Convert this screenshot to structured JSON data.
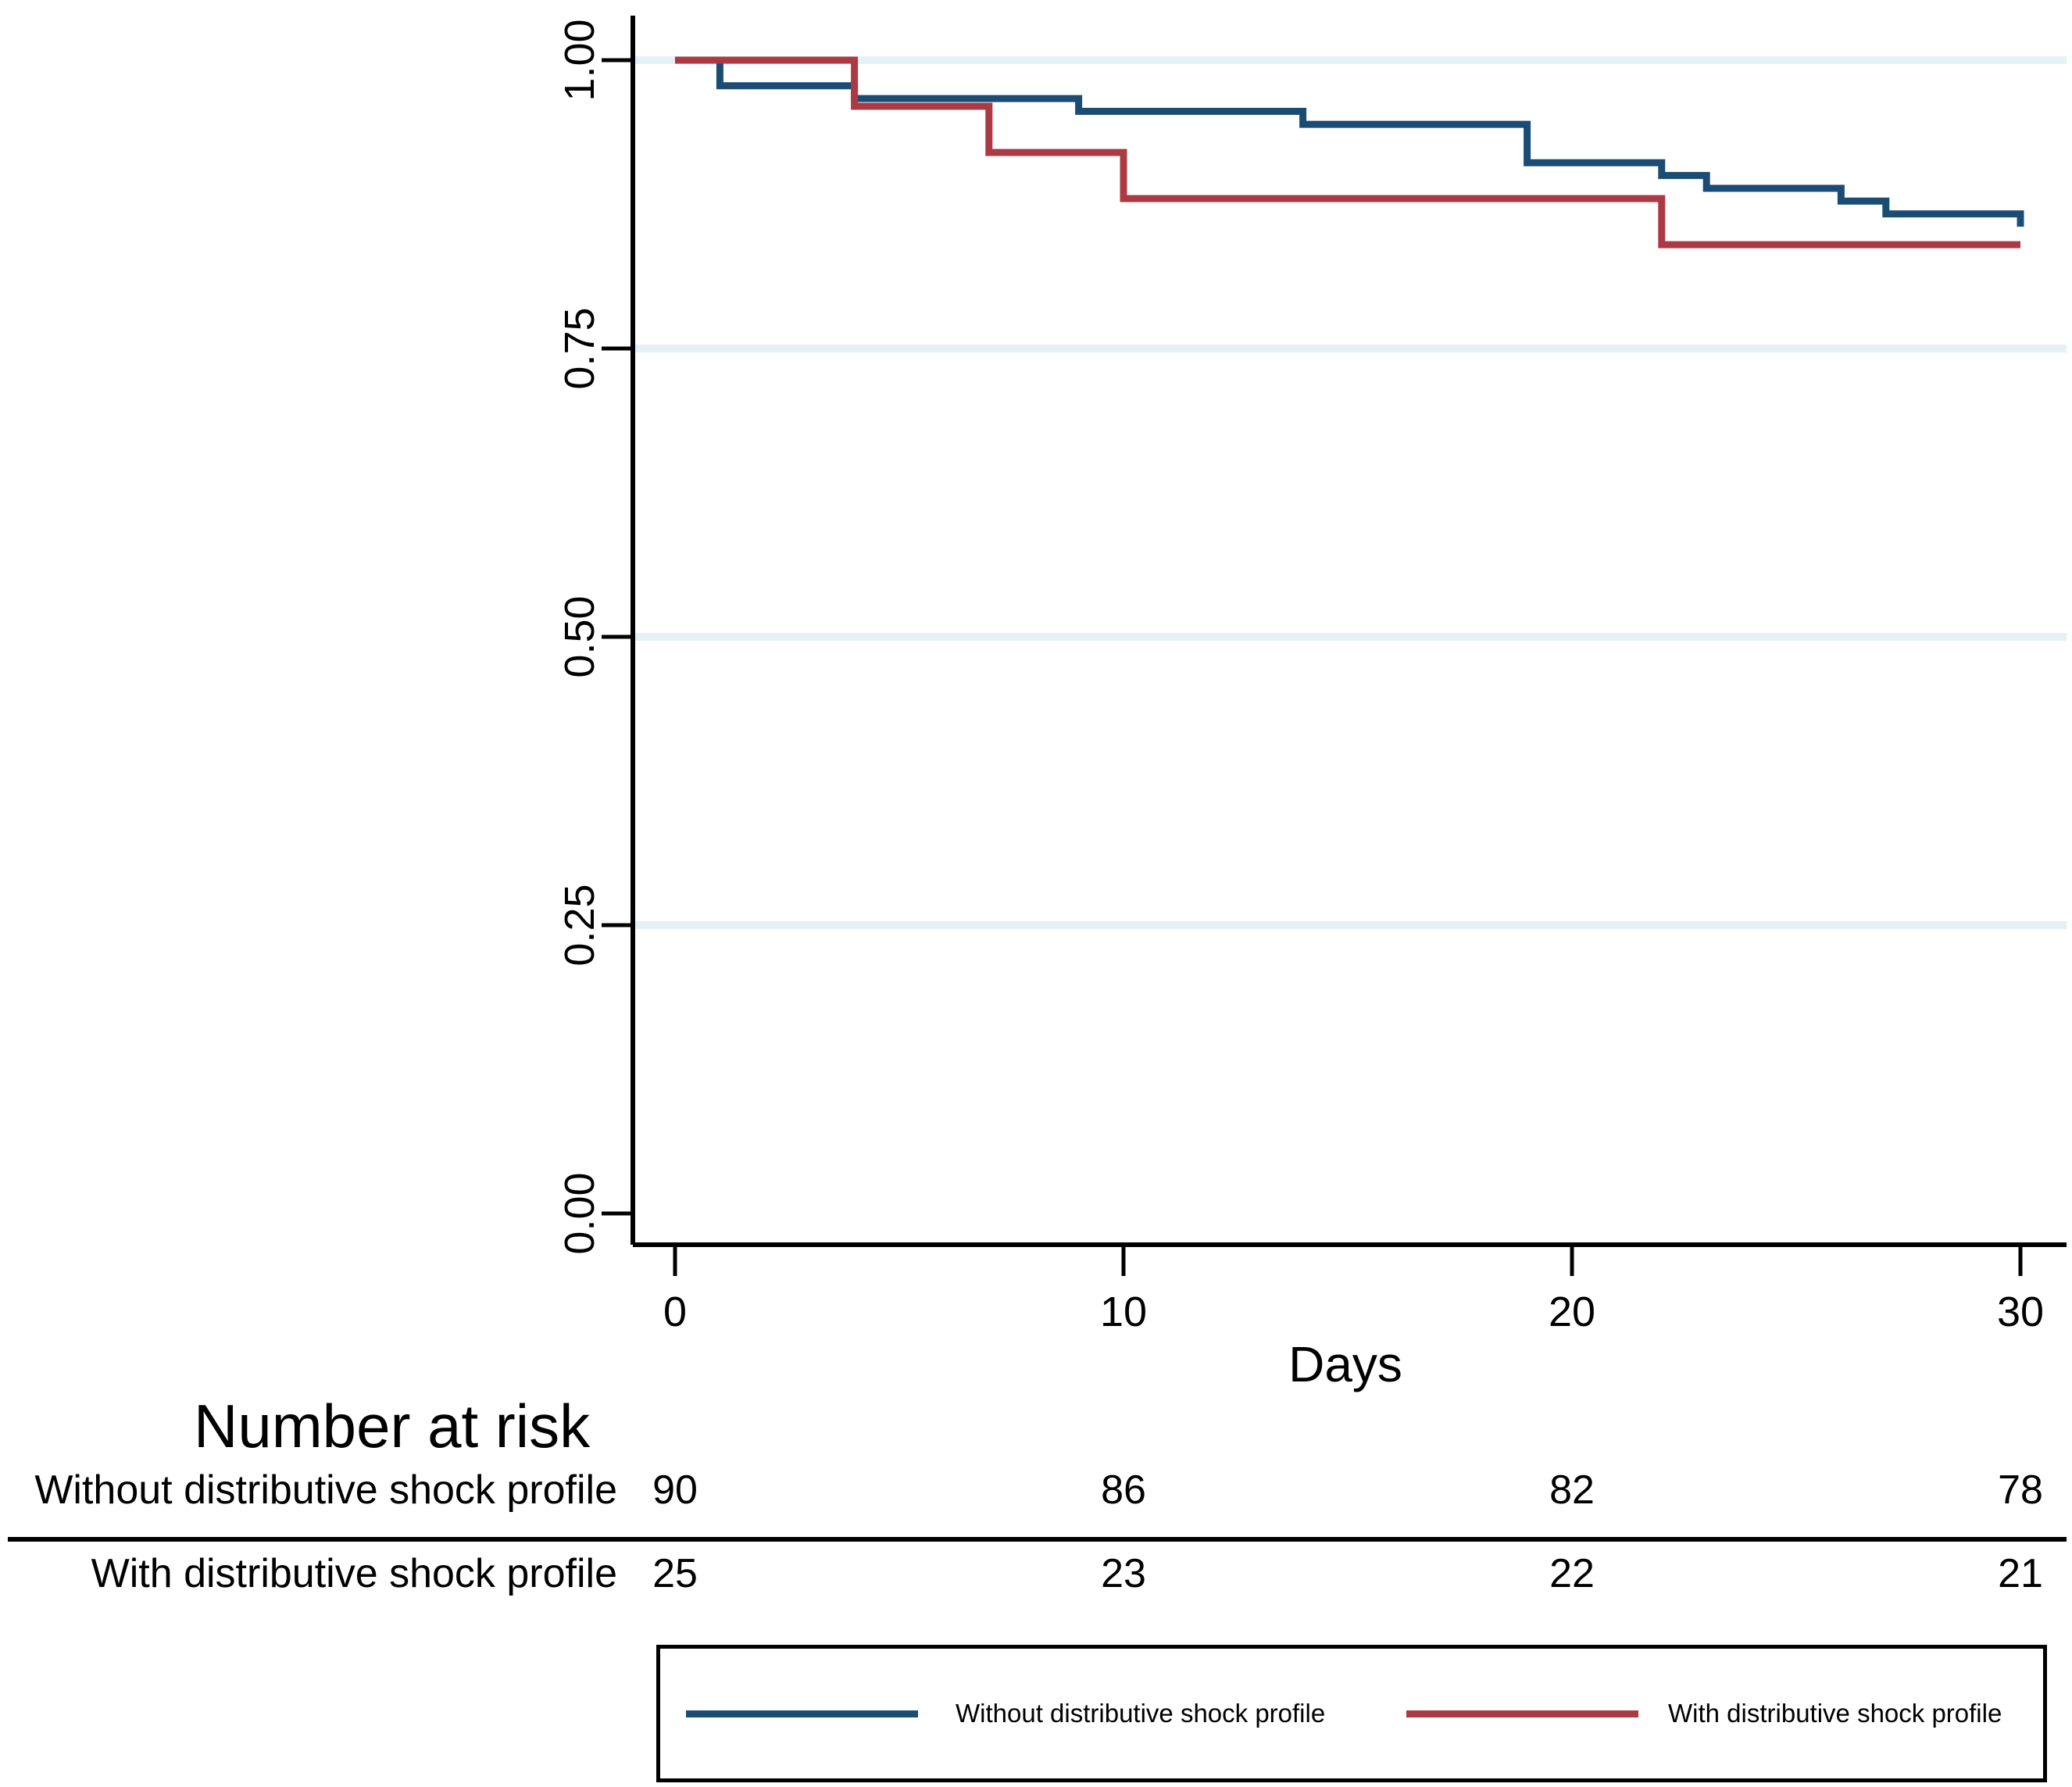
{
  "chart_data": {
    "type": "line",
    "subtype": "kaplan-meier-step-survival",
    "title": "",
    "xlabel": "Days",
    "ylabel": "",
    "xlim": [
      0,
      31
    ],
    "ylim": [
      0.0,
      1.0
    ],
    "grid": "horizontal light gridlines at 0.25, 0.50, 0.75, 1.00 (none at 0.00)",
    "legend_position": "boxed, below risk table",
    "x_ticks": [
      {
        "value": 0,
        "label": "0"
      },
      {
        "value": 10,
        "label": "10"
      },
      {
        "value": 20,
        "label": "20"
      },
      {
        "value": 30,
        "label": "30"
      }
    ],
    "y_ticks": [
      {
        "value": 0.0,
        "label": "0.00"
      },
      {
        "value": 0.25,
        "label": "0.25"
      },
      {
        "value": 0.5,
        "label": "0.50"
      },
      {
        "value": 0.75,
        "label": "0.75"
      },
      {
        "value": 1.0,
        "label": "1.00"
      }
    ],
    "series": [
      {
        "name": "Without distributive shock profile",
        "color": "#1A4C74",
        "steps_day_survival": [
          [
            0,
            1.0
          ],
          [
            1,
            0.9778
          ],
          [
            4,
            0.9667
          ],
          [
            9,
            0.9556
          ],
          [
            14,
            0.9444
          ],
          [
            19,
            0.9111
          ],
          [
            22,
            0.9
          ],
          [
            23,
            0.8889
          ],
          [
            26,
            0.8778
          ],
          [
            27,
            0.8667
          ],
          [
            30,
            0.8556
          ]
        ]
      },
      {
        "name": "With distributive shock profile",
        "color": "#AC3A44",
        "steps_day_survival": [
          [
            0,
            1.0
          ],
          [
            4,
            0.96
          ],
          [
            7,
            0.92
          ],
          [
            10,
            0.88
          ],
          [
            22,
            0.84
          ],
          [
            30,
            0.84
          ]
        ]
      }
    ]
  },
  "risk_table": {
    "title": "Number at risk",
    "time_points": [
      0,
      10,
      20,
      30
    ],
    "rows": [
      {
        "label": "Without distributive shock profile",
        "counts": [
          "90",
          "86",
          "82",
          "78"
        ]
      },
      {
        "label": "With distributive shock profile",
        "counts": [
          "25",
          "23",
          "22",
          "21"
        ]
      }
    ]
  },
  "legend": {
    "items": [
      {
        "label": "Without distributive shock profile",
        "color": "#1A4C74"
      },
      {
        "label": "With distributive shock profile",
        "color": "#AC3A44"
      }
    ]
  },
  "colors": {
    "gridline": "#E4F1F5",
    "axis": "#000000",
    "background": "#FFFFFF"
  }
}
